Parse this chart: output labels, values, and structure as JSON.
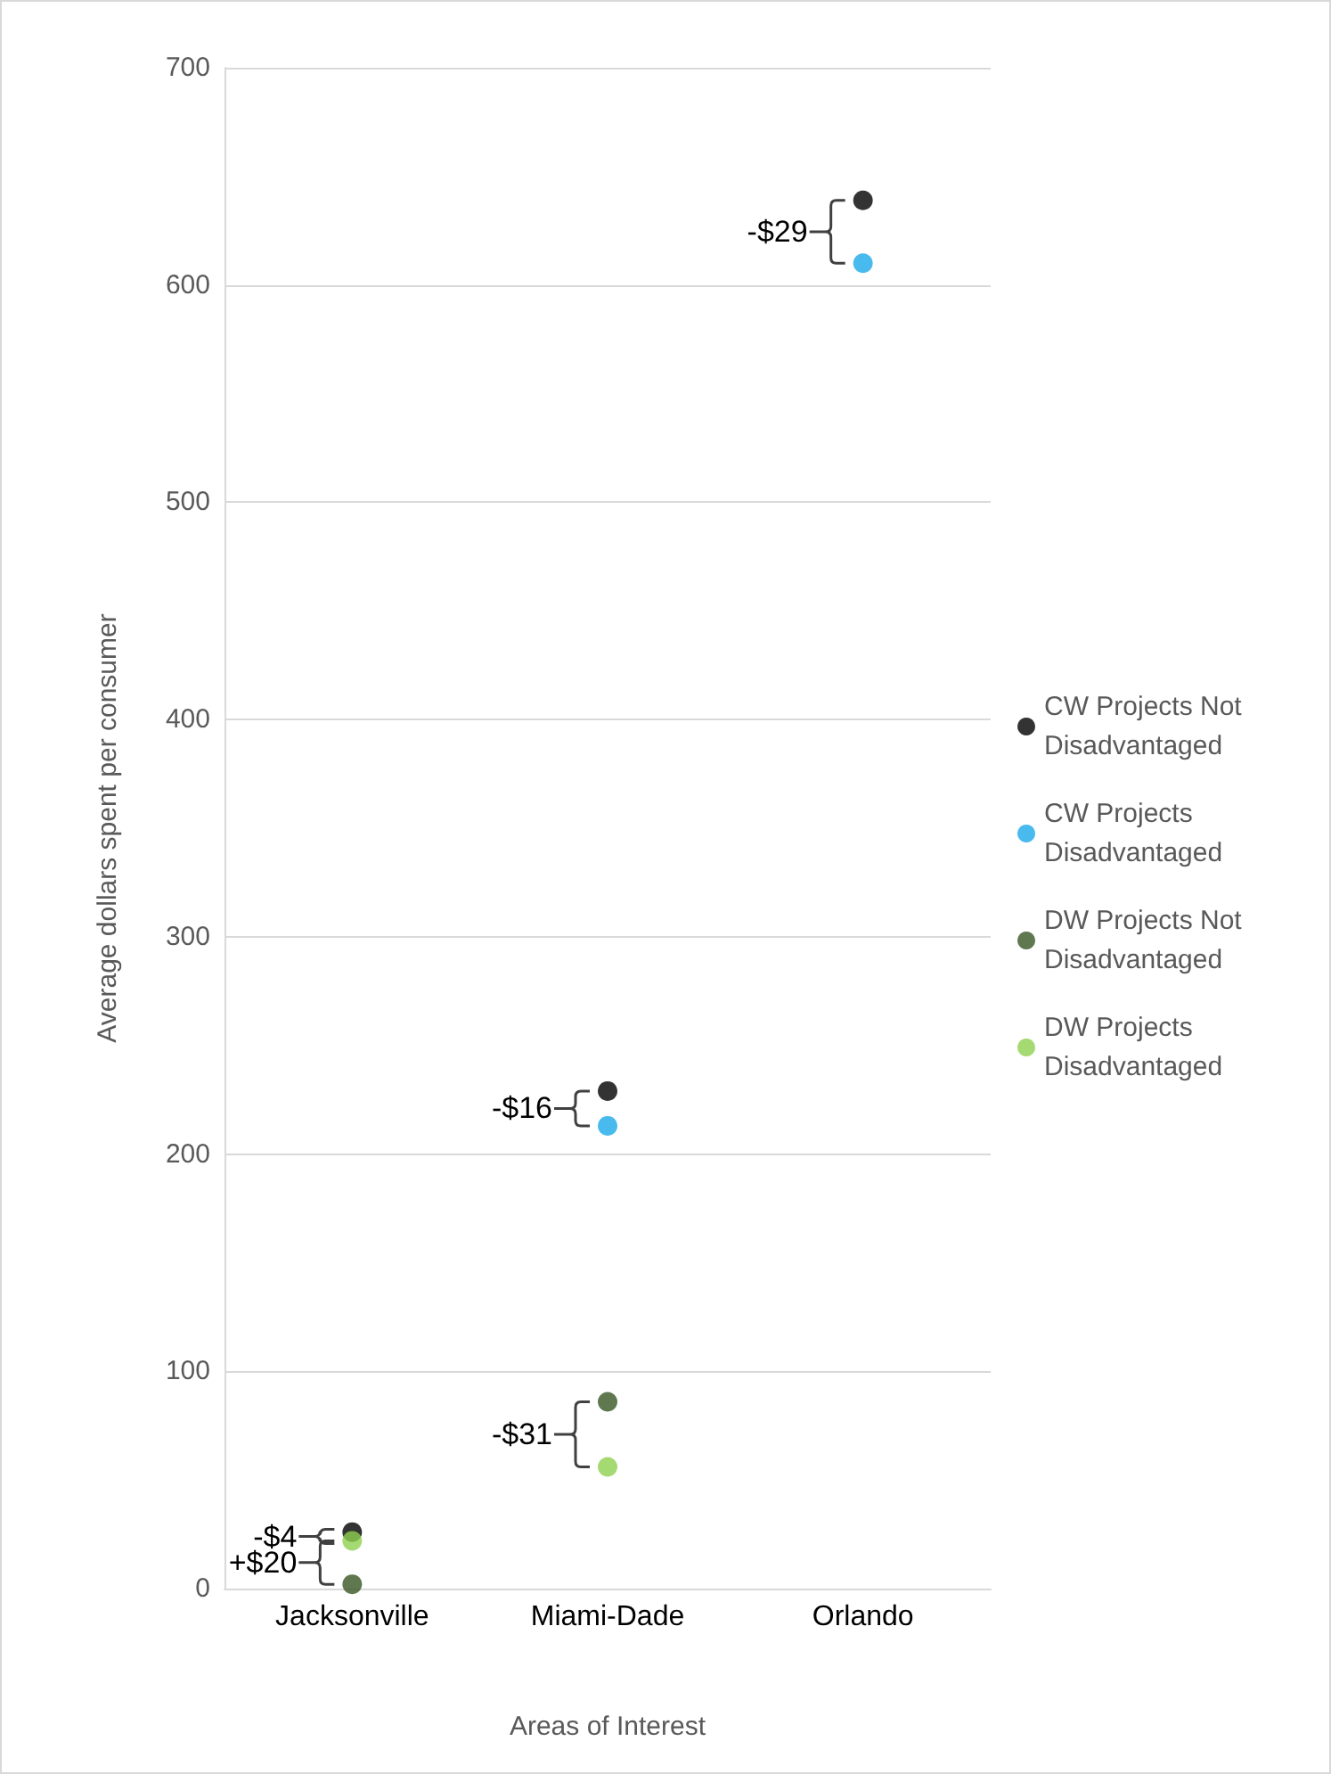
{
  "chart_data": {
    "type": "scatter",
    "xlabel": "Areas of Interest",
    "ylabel": "Average dollars spent per consumer",
    "categories": [
      "Jacksonville",
      "Miami-Dade",
      "Orlando"
    ],
    "series": [
      {
        "name": "CW Projects Not Disadvantaged",
        "color": "#000000",
        "values": [
          26,
          229,
          639
        ]
      },
      {
        "name": "CW Projects Disadvantaged",
        "color": "#1ba9e8",
        "values": [
          null,
          213,
          610
        ]
      },
      {
        "name": "DW Projects Not Disadvantaged",
        "color": "#375623",
        "values": [
          2,
          86,
          null
        ]
      },
      {
        "name": "DW Projects Disadvantaged",
        "color": "#8fd14f",
        "values": [
          22,
          56,
          null
        ]
      }
    ],
    "annotations": [
      {
        "text": "-$29",
        "x": "Orlando",
        "y": 639
      },
      {
        "text": "-$16",
        "x": "Miami-Dade",
        "y": 229
      },
      {
        "text": "-$31",
        "x": "Miami-Dade",
        "y": 86
      },
      {
        "text": "-$4",
        "x": "Jacksonville",
        "y": 26
      },
      {
        "text": "+$20",
        "x": "Jacksonville",
        "y": 22
      }
    ],
    "ylim": [
      0,
      700
    ],
    "yticks": [
      0,
      100,
      200,
      300,
      400,
      500,
      600,
      700
    ],
    "grid": "y",
    "legend": "right",
    "marker": "circle"
  }
}
